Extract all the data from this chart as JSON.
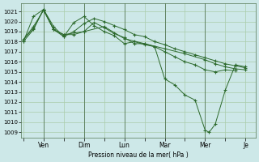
{
  "bg_color": "#cde8e8",
  "grid_color": "#aaccaa",
  "line_color": "#2d6a2d",
  "marker_color": "#2d6a2d",
  "xlabel": "Pression niveau de la mer( hPa )",
  "ylim": [
    1008.5,
    1021.8
  ],
  "yticks": [
    1009,
    1010,
    1011,
    1012,
    1013,
    1014,
    1015,
    1016,
    1017,
    1018,
    1019,
    1020,
    1021
  ],
  "xtick_labels": [
    "",
    "Ven",
    "",
    "Dim",
    "",
    "Lun",
    "",
    "Mar",
    "",
    "Mer",
    "",
    "Je"
  ],
  "xtick_positions": [
    0,
    1,
    2,
    3,
    4,
    5,
    6,
    7,
    8,
    9,
    10,
    11
  ],
  "vlines": [
    1,
    3,
    5,
    7,
    9
  ],
  "xlim": [
    -0.1,
    11.5
  ],
  "series": [
    {
      "x": [
        0.0,
        0.5,
        1.0,
        1.5,
        2.0,
        2.5,
        3.0,
        3.5,
        4.0,
        4.5,
        5.0,
        5.5,
        6.0,
        6.5,
        7.0,
        7.5,
        8.0,
        8.5,
        9.0,
        9.5,
        10.0,
        10.5,
        11.0
      ],
      "y": [
        1018.0,
        1020.5,
        1021.2,
        1019.5,
        1018.5,
        1019.0,
        1019.8,
        1020.3,
        1020.0,
        1019.6,
        1019.2,
        1018.7,
        1018.5,
        1018.0,
        1017.7,
        1017.3,
        1017.0,
        1016.7,
        1016.4,
        1016.1,
        1015.8,
        1015.6,
        1015.4
      ]
    },
    {
      "x": [
        0.0,
        0.5,
        1.0,
        1.5,
        2.0,
        2.5,
        3.0,
        3.5,
        4.0,
        4.5,
        5.0,
        5.5,
        6.0,
        6.5,
        7.0,
        7.5,
        8.0,
        8.5,
        9.0,
        9.5,
        10.0,
        10.5
      ],
      "y": [
        1018.0,
        1019.2,
        1021.2,
        1019.2,
        1018.5,
        1019.9,
        1020.5,
        1019.6,
        1019.0,
        1018.6,
        1017.8,
        1018.0,
        1017.7,
        1017.5,
        1017.0,
        1016.5,
        1016.0,
        1015.7,
        1015.2,
        1015.0,
        1015.2,
        1015.1
      ]
    },
    {
      "x": [
        0.0,
        0.5,
        1.0,
        1.5,
        2.0,
        2.5,
        3.0,
        3.5,
        4.0,
        4.5,
        5.0,
        5.5,
        6.0,
        6.5,
        7.0,
        7.5,
        8.0,
        8.5,
        9.0,
        9.2,
        9.5,
        10.0,
        10.5,
        11.0
      ],
      "y": [
        1018.2,
        1019.3,
        1021.2,
        1019.2,
        1018.7,
        1018.7,
        1019.0,
        1019.9,
        1019.4,
        1018.8,
        1018.4,
        1017.8,
        1017.8,
        1017.5,
        1014.3,
        1013.7,
        1012.7,
        1012.2,
        1009.2,
        1009.0,
        1009.8,
        1013.2,
        1015.7,
        1015.5
      ]
    },
    {
      "x": [
        0.0,
        0.5,
        1.0,
        1.5,
        2.0,
        3.0,
        4.0,
        5.0,
        6.0,
        7.0,
        8.0,
        9.0,
        9.5,
        10.0,
        10.5,
        11.0
      ],
      "y": [
        1018.2,
        1019.5,
        1021.1,
        1019.2,
        1018.7,
        1019.0,
        1019.5,
        1018.3,
        1017.8,
        1017.3,
        1016.8,
        1016.2,
        1015.8,
        1015.5,
        1015.3,
        1015.2
      ]
    }
  ]
}
